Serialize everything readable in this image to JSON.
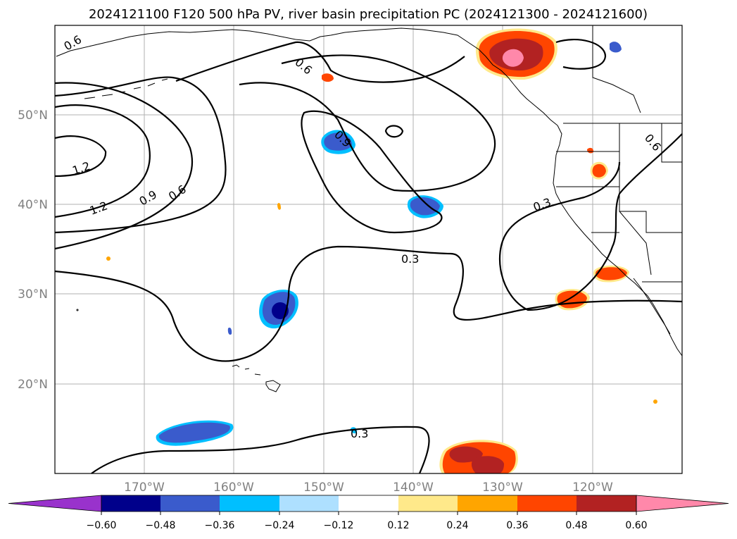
{
  "title": "2024121100 F120 500 hPa PV, river basin precipitation PC (2024121300 - 2024121600)",
  "lat_labels": [
    "50°N",
    "40°N",
    "30°N",
    "20°N"
  ],
  "lon_labels": [
    "170°W",
    "160°W",
    "150°W",
    "140°W",
    "130°W",
    "120°W"
  ],
  "contour_labels": [
    "0.6",
    "0.6",
    "1.2",
    "1.2",
    "0.9",
    "0.6",
    "0.9",
    "0.3",
    "0.3",
    "0.6",
    "0.3"
  ],
  "colorbar": {
    "ticks": [
      "−0.60",
      "−0.48",
      "−0.36",
      "−0.24",
      "−0.12",
      "0.12",
      "0.24",
      "0.36",
      "0.48",
      "0.60"
    ],
    "colors": [
      "#9932cc",
      "#00008b",
      "#3a5bcc",
      "#00bfff",
      "#aee0ff",
      "#ffffff",
      "#ffe98a",
      "#ffa500",
      "#ff4500",
      "#b22222",
      "#ff88aa",
      "#ff88aa"
    ]
  },
  "colors": {
    "neg_strong": "#00008b",
    "neg": "#3a5bcc",
    "neg_light": "#00bfff",
    "pos_light": "#ffe98a",
    "pos": "#ff4500",
    "pos_mid": "#ffa500",
    "pos_strong": "#b22222",
    "pos_max": "#ff88aa"
  }
}
